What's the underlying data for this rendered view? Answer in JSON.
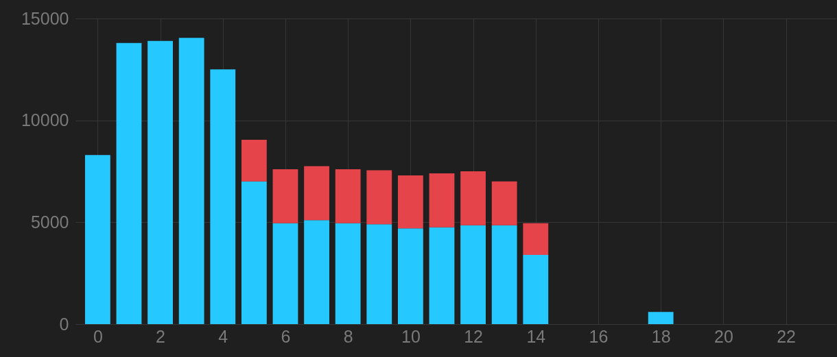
{
  "chart_data": {
    "type": "bar",
    "stacked": true,
    "grid": true,
    "legend": false,
    "xlim": [
      -0.6,
      23.5
    ],
    "xticks": [
      0,
      2,
      4,
      6,
      8,
      10,
      12,
      14,
      16,
      18,
      20,
      22
    ],
    "ylim": [
      0,
      15000
    ],
    "yticks": [
      0,
      5000,
      10000,
      15000
    ],
    "x": [
      0,
      1,
      2,
      3,
      4,
      5,
      6,
      7,
      8,
      9,
      10,
      11,
      12,
      13,
      14,
      18
    ],
    "series": [
      {
        "color": "#26c9ff",
        "values": [
          8300,
          13800,
          13900,
          14050,
          12500,
          7000,
          4950,
          5100,
          4950,
          4900,
          4700,
          4750,
          4850,
          4850,
          3400,
          600
        ]
      },
      {
        "color": "#e5444b",
        "values": [
          null,
          null,
          null,
          null,
          null,
          2050,
          2650,
          2650,
          2650,
          2650,
          2600,
          2650,
          2650,
          2150,
          1550,
          null
        ]
      }
    ]
  }
}
